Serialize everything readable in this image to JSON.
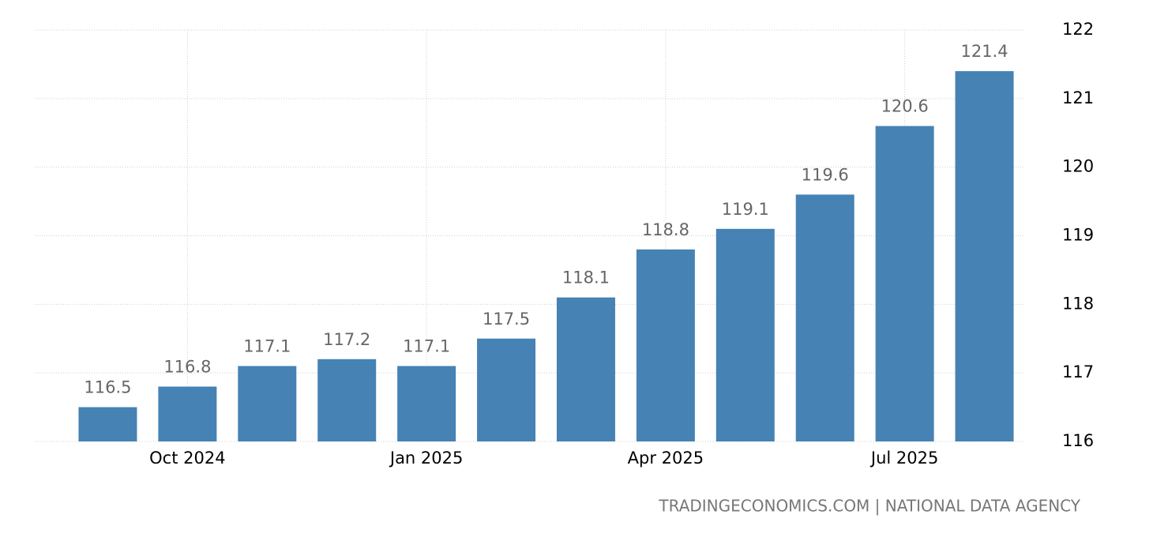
{
  "chart_data": {
    "type": "bar",
    "categories": [
      null,
      "Oct 2024",
      null,
      null,
      "Jan 2025",
      null,
      null,
      "Apr 2025",
      null,
      null,
      "Jul 2025",
      null
    ],
    "values": [
      116.5,
      116.8,
      117.1,
      117.2,
      117.1,
      117.5,
      118.1,
      118.8,
      119.1,
      119.6,
      120.6,
      121.4
    ],
    "color": "#4682b4",
    "ylim": [
      116,
      122
    ],
    "yticks": [
      116,
      117,
      118,
      119,
      120,
      121,
      122
    ],
    "grid": true,
    "source": "TRADINGECONOMICS.COM | NATIONAL DATA AGENCY"
  }
}
